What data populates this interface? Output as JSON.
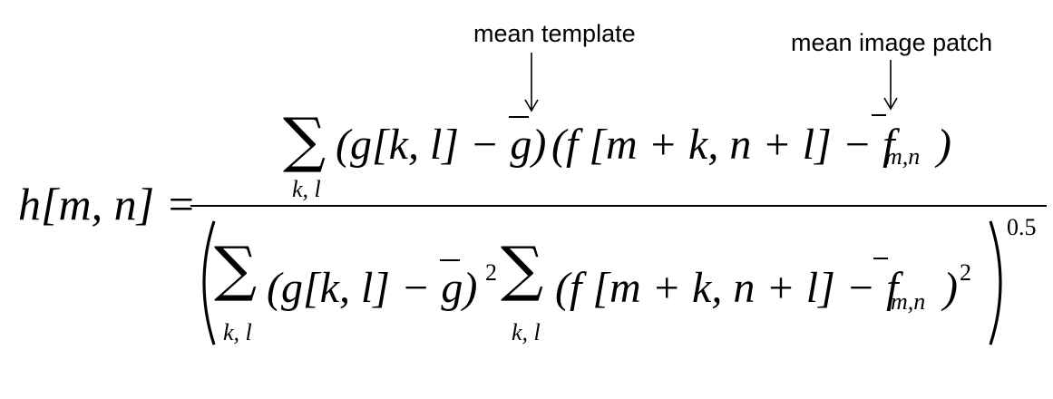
{
  "annotations": {
    "mean_template": "mean template",
    "mean_image_patch": "mean image patch"
  },
  "formula": {
    "lhs": "h[m, n] =",
    "numerator": {
      "sum_symbol": "∑",
      "sum_index": "k, l",
      "term_g": "(g[k, l] − g)",
      "term_f": "(f [m + k, n + l] − f",
      "f_subscript": "m,n",
      "close": ")"
    },
    "denominator": {
      "sum_symbol": "∑",
      "sum_index_1": "k, l",
      "term_g": "(g[k, l] − g)",
      "square_1": "2",
      "sum_index_2": "k, l",
      "term_f": "(f [m + k, n + l] − f",
      "f_subscript": "m,n",
      "close": ")",
      "square_2": "2",
      "exponent": "0.5"
    }
  }
}
